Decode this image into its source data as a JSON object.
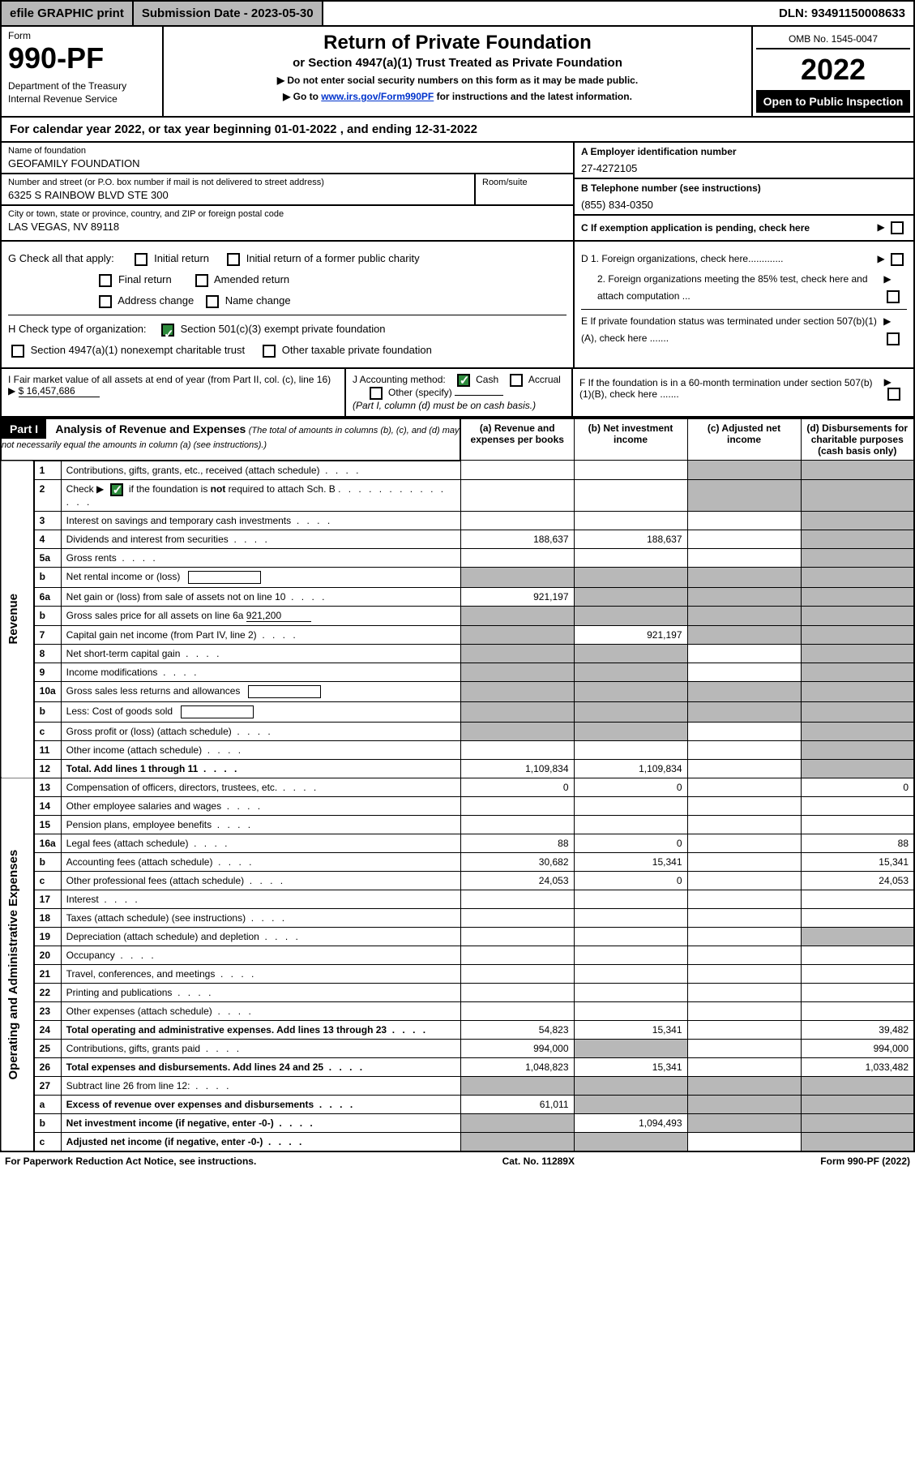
{
  "topbar": {
    "efile": "efile GRAPHIC print",
    "subdate_label": "Submission Date - 2023-05-30",
    "dln_label": "DLN: 93491150008633"
  },
  "header": {
    "form_label": "Form",
    "form_number": "990-PF",
    "dept": "Department of the Treasury\nInternal Revenue Service",
    "title": "Return of Private Foundation",
    "subtitle": "or Section 4947(a)(1) Trust Treated as Private Foundation",
    "note1": "▶ Do not enter social security numbers on this form as it may be made public.",
    "note2_prefix": "▶ Go to ",
    "note2_link": "www.irs.gov/Form990PF",
    "note2_suffix": " for instructions and the latest information.",
    "omb": "OMB No. 1545-0047",
    "year": "2022",
    "inspection": "Open to Public Inspection"
  },
  "cal_year": "For calendar year 2022, or tax year beginning 01-01-2022                              , and ending 12-31-2022",
  "info": {
    "name_label": "Name of foundation",
    "name": "GEOFAMILY FOUNDATION",
    "addr_label": "Number and street (or P.O. box number if mail is not delivered to street address)",
    "addr": "6325 S RAINBOW BLVD STE 300",
    "room_label": "Room/suite",
    "city_label": "City or town, state or province, country, and ZIP or foreign postal code",
    "city": "LAS VEGAS, NV  89118",
    "ein_label": "A Employer identification number",
    "ein": "27-4272105",
    "tel_label": "B Telephone number (see instructions)",
    "tel": "(855) 834-0350",
    "c_label": "C If exemption application is pending, check here"
  },
  "checks": {
    "g_label": "G Check all that apply:",
    "g_opts": [
      "Initial return",
      "Initial return of a former public charity",
      "Final return",
      "Amended return",
      "Address change",
      "Name change"
    ],
    "h_label": "H Check type of organization:",
    "h_opts": [
      "Section 501(c)(3) exempt private foundation",
      "Section 4947(a)(1) nonexempt charitable trust",
      "Other taxable private foundation"
    ],
    "d1": "D 1. Foreign organizations, check here.............",
    "d2": "2. Foreign organizations meeting the 85% test, check here and attach computation ...",
    "e": "E   If private foundation status was terminated under section 507(b)(1)(A), check here .......",
    "f": "F   If the foundation is in a 60-month termination under section 507(b)(1)(B), check here ......."
  },
  "hij": {
    "i_label": "I Fair market value of all assets at end of year (from Part II, col. (c), line 16)",
    "i_val": "$  16,457,686",
    "j_label": "J Accounting method:",
    "j_cash": "Cash",
    "j_accrual": "Accrual",
    "j_other": "Other (specify)",
    "j_note": "(Part I, column (d) must be on cash basis.)"
  },
  "part1": {
    "label": "Part I",
    "title": "Analysis of Revenue and Expenses",
    "title_note": "(The total of amounts in columns (b), (c), and (d) may not necessarily equal the amounts in column (a) (see instructions).)",
    "col_a": "(a)   Revenue and expenses per books",
    "col_b": "(b)   Net investment income",
    "col_c": "(c)   Adjusted net income",
    "col_d": "(d)   Disbursements for charitable purposes (cash basis only)"
  },
  "sidelabels": {
    "rev": "Revenue",
    "ope": "Operating and Administrative Expenses"
  },
  "rows": [
    {
      "n": "1",
      "t": "Contributions, gifts, grants, etc., received (attach schedule)",
      "a": "",
      "b": "",
      "c": "shaded",
      "d": "shaded"
    },
    {
      "n": "2",
      "t": "Check ▶ ☑ if the foundation is not required to attach Sch. B",
      "is_checkline": true,
      "a": "",
      "b": "",
      "c": "shaded",
      "d": "shaded"
    },
    {
      "n": "3",
      "t": "Interest on savings and temporary cash investments",
      "a": "",
      "b": "",
      "c": "",
      "d": "shaded"
    },
    {
      "n": "4",
      "t": "Dividends and interest from securities",
      "a": "188,637",
      "b": "188,637",
      "c": "",
      "d": "shaded"
    },
    {
      "n": "5a",
      "t": "Gross rents",
      "a": "",
      "b": "",
      "c": "",
      "d": "shaded"
    },
    {
      "n": "b",
      "t": "Net rental income or (loss)",
      "has_fillbox": true,
      "a": "shaded",
      "b": "shaded",
      "c": "shaded",
      "d": "shaded"
    },
    {
      "n": "6a",
      "t": "Net gain or (loss) from sale of assets not on line 10",
      "a": "921,197",
      "b": "shaded",
      "c": "shaded",
      "d": "shaded"
    },
    {
      "n": "b",
      "t": "Gross sales price for all assets on line 6a",
      "underfill": "921,200",
      "a": "shaded",
      "b": "shaded",
      "c": "shaded",
      "d": "shaded"
    },
    {
      "n": "7",
      "t": "Capital gain net income (from Part IV, line 2)",
      "a": "shaded",
      "b": "921,197",
      "c": "shaded",
      "d": "shaded"
    },
    {
      "n": "8",
      "t": "Net short-term capital gain",
      "a": "shaded",
      "b": "shaded",
      "c": "",
      "d": "shaded"
    },
    {
      "n": "9",
      "t": "Income modifications",
      "a": "shaded",
      "b": "shaded",
      "c": "",
      "d": "shaded"
    },
    {
      "n": "10a",
      "t": "Gross sales less returns and allowances",
      "has_fillbox": true,
      "a": "shaded",
      "b": "shaded",
      "c": "shaded",
      "d": "shaded"
    },
    {
      "n": "b",
      "t": "Less: Cost of goods sold",
      "has_fillbox": true,
      "a": "shaded",
      "b": "shaded",
      "c": "shaded",
      "d": "shaded"
    },
    {
      "n": "c",
      "t": "Gross profit or (loss) (attach schedule)",
      "a": "shaded",
      "b": "shaded",
      "c": "",
      "d": "shaded"
    },
    {
      "n": "11",
      "t": "Other income (attach schedule)",
      "a": "",
      "b": "",
      "c": "",
      "d": "shaded"
    },
    {
      "n": "12",
      "t": "Total. Add lines 1 through 11",
      "bold": true,
      "a": "1,109,834",
      "b": "1,109,834",
      "c": "",
      "d": "shaded"
    },
    {
      "n": "13",
      "t": "Compensation of officers, directors, trustees, etc.",
      "a": "0",
      "b": "0",
      "c": "",
      "d": "0"
    },
    {
      "n": "14",
      "t": "Other employee salaries and wages",
      "a": "",
      "b": "",
      "c": "",
      "d": ""
    },
    {
      "n": "15",
      "t": "Pension plans, employee benefits",
      "a": "",
      "b": "",
      "c": "",
      "d": ""
    },
    {
      "n": "16a",
      "t": "Legal fees (attach schedule)",
      "a": "88",
      "b": "0",
      "c": "",
      "d": "88"
    },
    {
      "n": "b",
      "t": "Accounting fees (attach schedule)",
      "a": "30,682",
      "b": "15,341",
      "c": "",
      "d": "15,341"
    },
    {
      "n": "c",
      "t": "Other professional fees (attach schedule)",
      "a": "24,053",
      "b": "0",
      "c": "",
      "d": "24,053"
    },
    {
      "n": "17",
      "t": "Interest",
      "a": "",
      "b": "",
      "c": "",
      "d": ""
    },
    {
      "n": "18",
      "t": "Taxes (attach schedule) (see instructions)",
      "a": "",
      "b": "",
      "c": "",
      "d": ""
    },
    {
      "n": "19",
      "t": "Depreciation (attach schedule) and depletion",
      "a": "",
      "b": "",
      "c": "",
      "d": "shaded"
    },
    {
      "n": "20",
      "t": "Occupancy",
      "a": "",
      "b": "",
      "c": "",
      "d": ""
    },
    {
      "n": "21",
      "t": "Travel, conferences, and meetings",
      "a": "",
      "b": "",
      "c": "",
      "d": ""
    },
    {
      "n": "22",
      "t": "Printing and publications",
      "a": "",
      "b": "",
      "c": "",
      "d": ""
    },
    {
      "n": "23",
      "t": "Other expenses (attach schedule)",
      "a": "",
      "b": "",
      "c": "",
      "d": ""
    },
    {
      "n": "24",
      "t": "Total operating and administrative expenses. Add lines 13 through 23",
      "bold": true,
      "a": "54,823",
      "b": "15,341",
      "c": "",
      "d": "39,482"
    },
    {
      "n": "25",
      "t": "Contributions, gifts, grants paid",
      "a": "994,000",
      "b": "shaded",
      "c": "",
      "d": "994,000"
    },
    {
      "n": "26",
      "t": "Total expenses and disbursements. Add lines 24 and 25",
      "bold": true,
      "a": "1,048,823",
      "b": "15,341",
      "c": "",
      "d": "1,033,482"
    },
    {
      "n": "27",
      "t": "Subtract line 26 from line 12:",
      "a": "shaded",
      "b": "shaded",
      "c": "shaded",
      "d": "shaded"
    },
    {
      "n": "a",
      "t": "Excess of revenue over expenses and disbursements",
      "bold": true,
      "a": "61,011",
      "b": "shaded",
      "c": "shaded",
      "d": "shaded"
    },
    {
      "n": "b",
      "t": "Net investment income (if negative, enter -0-)",
      "bold": true,
      "a": "shaded",
      "b": "1,094,493",
      "c": "shaded",
      "d": "shaded"
    },
    {
      "n": "c",
      "t": "Adjusted net income (if negative, enter -0-)",
      "bold": true,
      "a": "shaded",
      "b": "shaded",
      "c": "",
      "d": "shaded"
    }
  ],
  "footer": {
    "left": "For Paperwork Reduction Act Notice, see instructions.",
    "mid": "Cat. No. 11289X",
    "right": "Form 990-PF (2022)"
  },
  "colors": {
    "shaded": "#b8b8b8",
    "link": "#0033cc",
    "check_green": "#2e8b3d"
  },
  "col_widths": {
    "side": 28,
    "lineno": 38,
    "text": 480,
    "val": 140
  }
}
